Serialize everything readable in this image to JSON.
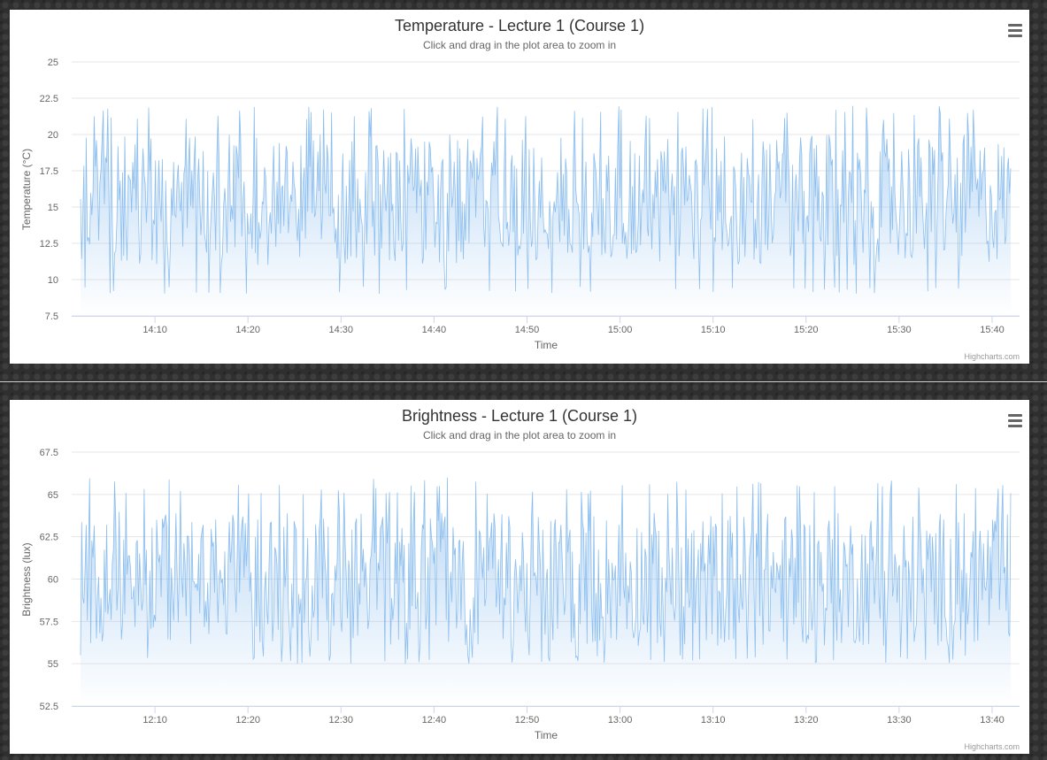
{
  "menu_icon": "hamburger-menu-icon",
  "credits": "Highcharts.com",
  "colors": {
    "series_line": "#7cb5ec",
    "series_fill_top": "#7cb5ec",
    "gridline": "#e6e6e6",
    "axis_line": "#ccd6eb"
  },
  "chart_data": [
    {
      "type": "area",
      "title": "Temperature - Lecture 1 (Course 1)",
      "subtitle": "Click and drag in the plot area to zoom in",
      "xlabel": "Time",
      "ylabel": "Temperature (°C)",
      "yticks": [
        "7.5",
        "10",
        "12.5",
        "15",
        "17.5",
        "20",
        "22.5",
        "25"
      ],
      "ylim": [
        7.5,
        25
      ],
      "xticks": [
        "14:10",
        "14:20",
        "14:30",
        "14:40",
        "14:50",
        "15:00",
        "15:10",
        "15:20",
        "15:30",
        "15:40"
      ],
      "x_range": [
        "14:02",
        "15:42"
      ],
      "grid": true,
      "series": [
        {
          "y_range": [
            9,
            22
          ],
          "typical_range": [
            11,
            20
          ],
          "seed": 17,
          "point_count": 820
        }
      ]
    },
    {
      "type": "area",
      "title": "Brightness - Lecture 1 (Course 1)",
      "subtitle": "Click and drag in the plot area to zoom in",
      "xlabel": "Time",
      "ylabel": "Brightness (lux)",
      "yticks": [
        "52.5",
        "55",
        "57.5",
        "60",
        "62.5",
        "65",
        "67.5"
      ],
      "ylim": [
        52.5,
        67.5
      ],
      "xticks": [
        "12:10",
        "12:20",
        "12:30",
        "12:40",
        "12:50",
        "13:00",
        "13:10",
        "13:20",
        "13:30",
        "13:40"
      ],
      "x_range": [
        "12:02",
        "13:42"
      ],
      "grid": true,
      "series": [
        {
          "y_range": [
            55,
            66
          ],
          "typical_range": [
            56,
            64
          ],
          "seed": 41,
          "point_count": 820
        }
      ]
    }
  ]
}
